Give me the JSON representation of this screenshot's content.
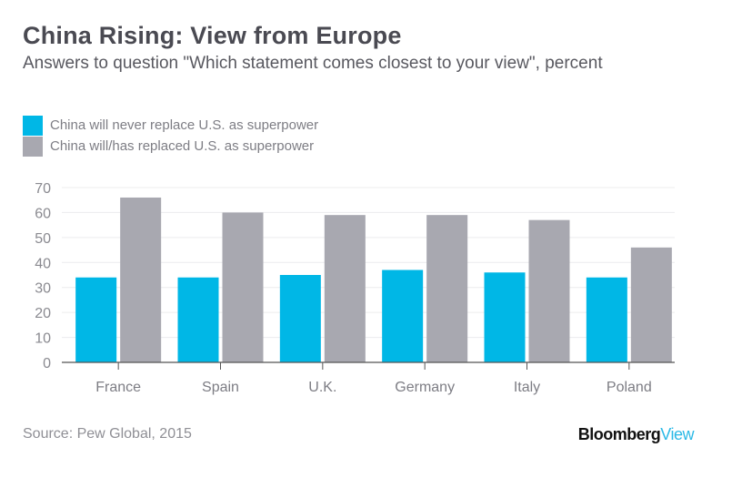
{
  "chart_data": {
    "type": "bar",
    "title": "China Rising: View from Europe",
    "subtitle": "Answers to question \"Which statement comes closest to your view\", percent",
    "xlabel": "",
    "ylabel": "",
    "categories": [
      "France",
      "Spain",
      "U.K.",
      "Germany",
      "Italy",
      "Poland"
    ],
    "series": [
      {
        "name": "China will never replace U.S. as superpower",
        "color": "#00b7e6",
        "values": [
          34,
          34,
          35,
          37,
          36,
          34
        ]
      },
      {
        "name": "China will/has replaced U.S. as superpower",
        "color": "#a8a8b0",
        "values": [
          66,
          60,
          59,
          59,
          57,
          46
        ]
      }
    ],
    "ylim": [
      0,
      70
    ],
    "yticks": [
      0,
      10,
      20,
      30,
      40,
      50,
      60,
      70
    ],
    "grid": true,
    "legend": "top-left"
  },
  "footer": {
    "source": "Source: Pew Global, 2015",
    "brand_part1": "Bloomberg",
    "brand_part2": "View"
  }
}
